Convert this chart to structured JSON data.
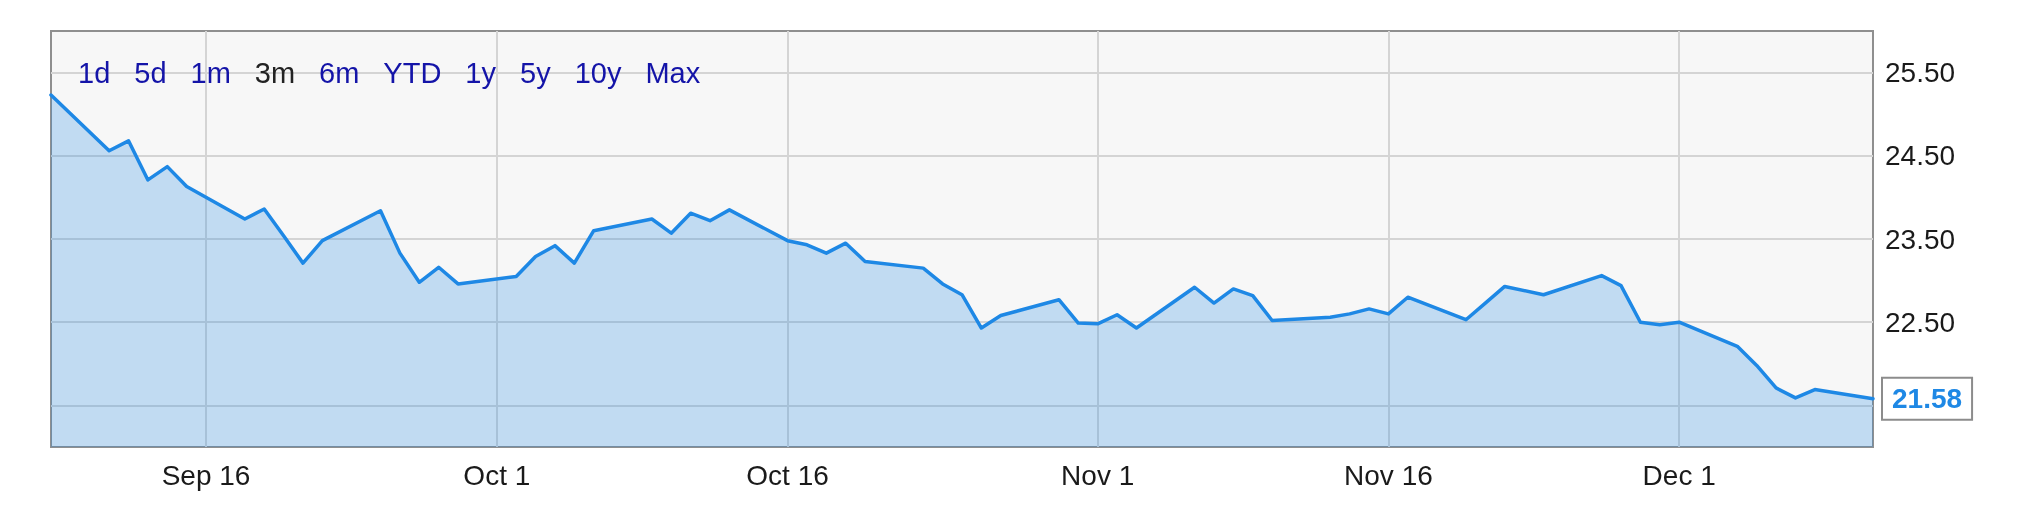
{
  "chart_data": {
    "type": "area",
    "annotations": [
      "1d",
      "5d",
      "1m",
      "3m",
      "6m",
      "YTD",
      "1y",
      "5y",
      "10y",
      "Max"
    ],
    "x": [
      "--09-08",
      "--09-11",
      "--09-12",
      "--09-13",
      "--09-14",
      "--09-15",
      "--09-18",
      "--09-19",
      "--09-20",
      "--09-21",
      "--09-22",
      "--09-25",
      "--09-26",
      "--09-27",
      "--09-28",
      "--09-29",
      "--10-02",
      "--10-03",
      "--10-04",
      "--10-05",
      "--10-06",
      "--10-09",
      "--10-10",
      "--10-11",
      "--10-12",
      "--10-13",
      "--10-16",
      "--10-17",
      "--10-18",
      "--10-19",
      "--10-20",
      "--10-23",
      "--10-24",
      "--10-25",
      "--10-26",
      "--10-27",
      "--10-30",
      "--10-31",
      "--11-01",
      "--11-02",
      "--11-03",
      "--11-06",
      "--11-07",
      "--11-08",
      "--11-09",
      "--11-10",
      "--11-13",
      "--11-14",
      "--11-15",
      "--11-16",
      "--11-17",
      "--11-20",
      "--11-21",
      "--11-22",
      "--11-24",
      "--11-27",
      "--11-28",
      "--11-29",
      "--11-30",
      "--12-01",
      "--12-04",
      "--12-05",
      "--12-06",
      "--12-07",
      "--12-08",
      "--12-11"
    ],
    "values": [
      25.23,
      24.56,
      24.68,
      24.21,
      24.37,
      24.13,
      23.74,
      23.86,
      23.54,
      23.21,
      23.48,
      23.84,
      23.33,
      22.98,
      23.16,
      22.96,
      23.05,
      23.29,
      23.42,
      23.21,
      23.6,
      23.74,
      23.57,
      23.81,
      23.72,
      23.85,
      23.48,
      23.43,
      23.33,
      23.45,
      23.23,
      23.15,
      22.96,
      22.83,
      22.43,
      22.58,
      22.77,
      22.49,
      22.48,
      22.59,
      22.43,
      22.92,
      22.73,
      22.9,
      22.82,
      22.52,
      22.56,
      22.6,
      22.66,
      22.6,
      22.8,
      22.53,
      22.73,
      22.93,
      22.83,
      23.06,
      22.94,
      22.5,
      22.47,
      22.5,
      22.21,
      21.98,
      21.71,
      21.59,
      21.69,
      21.58
    ],
    "value_labels": [
      null,
      null,
      null,
      null,
      null,
      null,
      null,
      null,
      null,
      null,
      null,
      null,
      null,
      null,
      null,
      null,
      null,
      null,
      null,
      null,
      null,
      null,
      null,
      null,
      null,
      null,
      null,
      null,
      null,
      null,
      null,
      null,
      null,
      null,
      null,
      null,
      null,
      null,
      null,
      null,
      null,
      null,
      null,
      null,
      null,
      null,
      null,
      null,
      null,
      null,
      null,
      null,
      null,
      null,
      null,
      null,
      null,
      null,
      null,
      null,
      null,
      null,
      null,
      null,
      null,
      "21.58"
    ],
    "color": "#1e88e5",
    "xlim": [
      "--09-08",
      "--12-11"
    ],
    "xticks": [
      {
        "value": "--09-16",
        "label": "Sep 16"
      },
      {
        "value": "--10-01",
        "label": "Oct 1"
      },
      {
        "value": "--10-16",
        "label": "Oct 16"
      },
      {
        "value": "--11-01",
        "label": "Nov 1"
      },
      {
        "value": "--11-16",
        "label": "Nov 16"
      },
      {
        "value": "--12-01",
        "label": "Dec 1"
      }
    ],
    "ylim": [
      21,
      26
    ],
    "yticks": [
      {
        "value": 21.5,
        "label": null
      },
      {
        "value": 22.5,
        "label": "22.50"
      },
      {
        "value": 23.5,
        "label": "23.50"
      },
      {
        "value": 24.5,
        "label": "24.50"
      },
      {
        "value": 25.5,
        "label": "25.50"
      }
    ],
    "grid": true
  }
}
